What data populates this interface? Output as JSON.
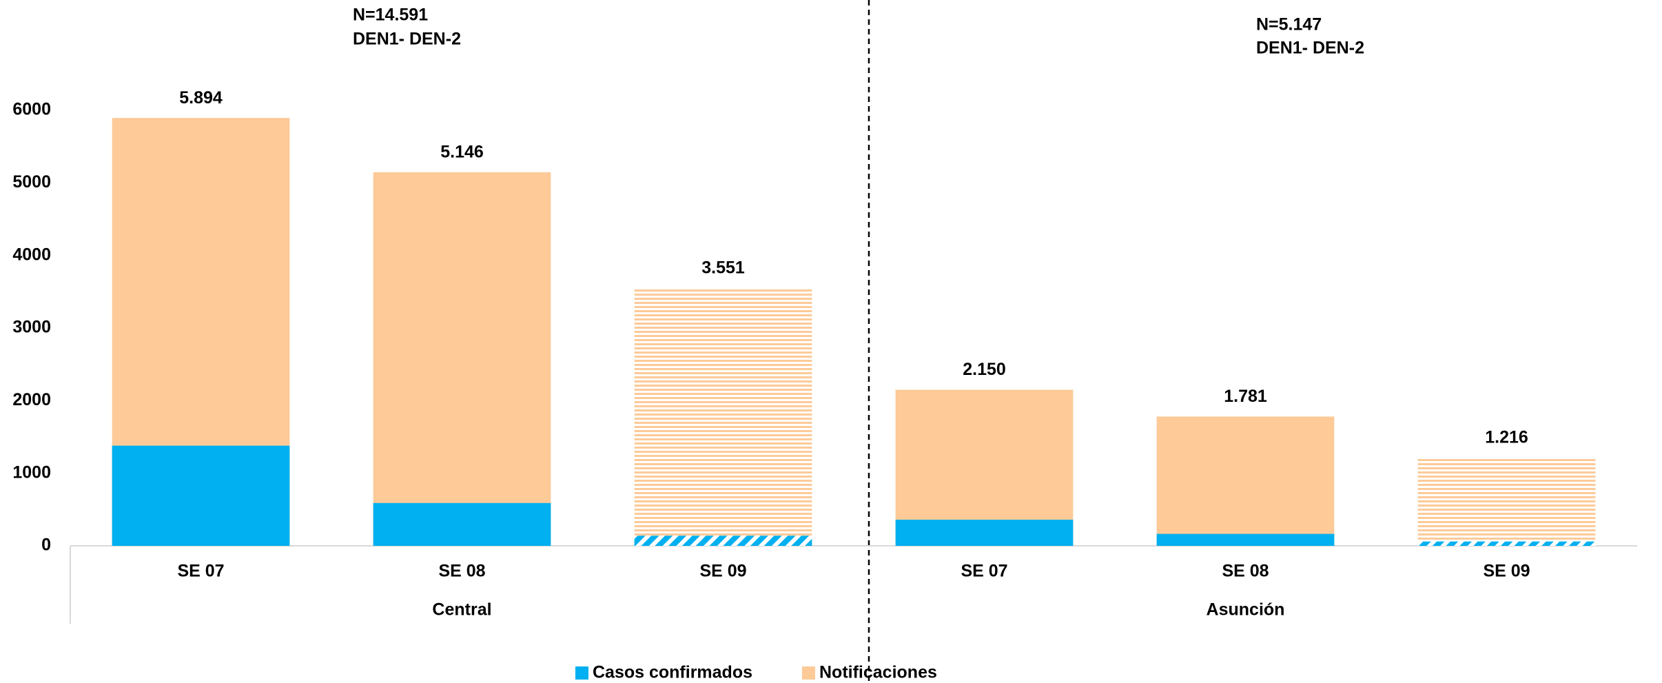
{
  "chart_data": {
    "type": "bar",
    "categories": [
      "SE 07",
      "SE 08",
      "SE 09",
      "SE 07",
      "SE 08",
      "SE 09"
    ],
    "group_labels": [
      "Central",
      "Asunción"
    ],
    "annotations": [
      [
        "N=14.591",
        "DEN1- DEN-2"
      ],
      [
        "N=5.147",
        "DEN1- DEN-2"
      ]
    ],
    "hatched": [
      false,
      false,
      true,
      false,
      false,
      true
    ],
    "series": [
      {
        "name": "Notificaciones",
        "color": "#fdca98",
        "values": [
          5894,
          5146,
          3551,
          2150,
          1781,
          1216
        ],
        "value_labels": [
          "5.894",
          "5.146",
          "3.551",
          "2.150",
          "1.781",
          "1.216"
        ]
      },
      {
        "name": "Casos confirmados",
        "color": "#00b0f0",
        "values": [
          1380,
          590,
          140,
          360,
          165,
          60
        ]
      }
    ],
    "legend": "bottom",
    "ylim": [
      0,
      6000
    ],
    "yticks": [
      0,
      1000,
      2000,
      3000,
      4000,
      5000,
      6000
    ],
    "grid": false
  }
}
